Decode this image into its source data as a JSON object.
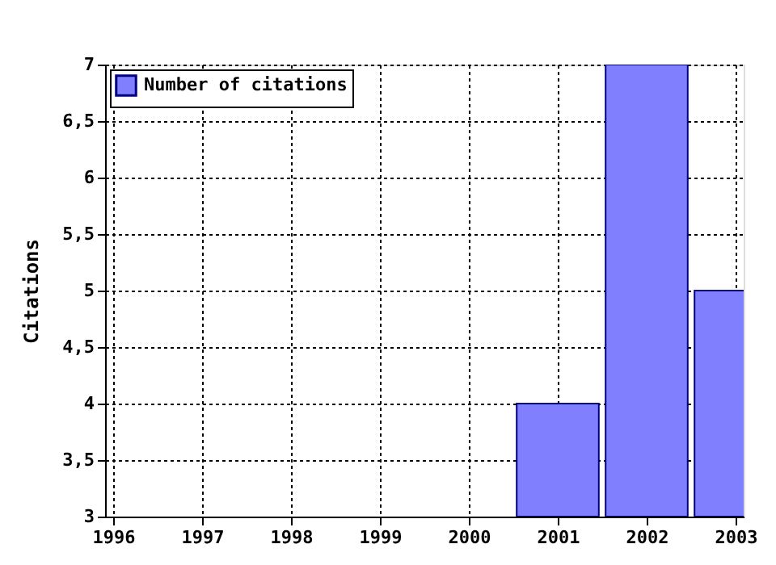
{
  "chart_data": {
    "type": "bar",
    "ylabel": "Citations",
    "x": [
      2001,
      2002,
      2003
    ],
    "series": [
      {
        "name": "Number of citations",
        "color": "#8080ff",
        "values": [
          4,
          7,
          5
        ]
      }
    ],
    "xlim": [
      1996,
      2003
    ],
    "xticks": [
      1996,
      1997,
      1998,
      1999,
      2000,
      2001,
      2002,
      2003
    ],
    "ylim": [
      3,
      7
    ],
    "yticks": [
      3,
      {
        "value": 3.5,
        "label": "3,5"
      },
      4,
      {
        "value": 4.5,
        "label": "4,5"
      },
      5,
      {
        "value": 5.5,
        "label": "5,5"
      },
      6,
      {
        "value": 6.5,
        "label": "6,5"
      },
      7
    ],
    "grid": true,
    "legend": "top left"
  }
}
